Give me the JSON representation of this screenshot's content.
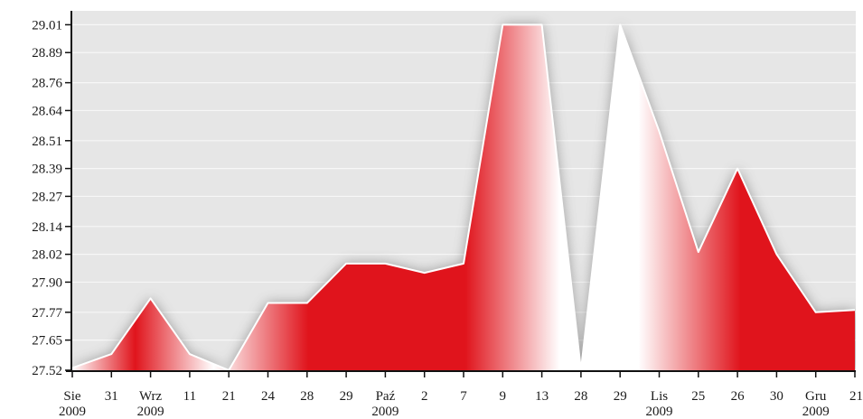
{
  "chart_data": {
    "type": "area",
    "title": "",
    "xlabel": "",
    "ylabel": "",
    "ylim": [
      27.52,
      29.07
    ],
    "grid": true,
    "y_ticks": [
      "29.01",
      "28.89",
      "28.76",
      "28.64",
      "28.51",
      "28.39",
      "28.27",
      "28.14",
      "28.02",
      "27.90",
      "27.77",
      "27.65",
      "27.52"
    ],
    "x_ticks": [
      {
        "label": "Sie",
        "year": "2009"
      },
      {
        "label": "31",
        "year": ""
      },
      {
        "label": "Wrz",
        "year": "2009"
      },
      {
        "label": "11",
        "year": ""
      },
      {
        "label": "21",
        "year": ""
      },
      {
        "label": "24",
        "year": ""
      },
      {
        "label": "28",
        "year": ""
      },
      {
        "label": "29",
        "year": ""
      },
      {
        "label": "Paź",
        "year": "2009"
      },
      {
        "label": "2",
        "year": ""
      },
      {
        "label": "7",
        "year": ""
      },
      {
        "label": "9",
        "year": ""
      },
      {
        "label": "13",
        "year": ""
      },
      {
        "label": "28",
        "year": ""
      },
      {
        "label": "29",
        "year": ""
      },
      {
        "label": "Lis",
        "year": "2009"
      },
      {
        "label": "25",
        "year": ""
      },
      {
        "label": "26",
        "year": ""
      },
      {
        "label": "30",
        "year": ""
      },
      {
        "label": "Gru",
        "year": "2009"
      },
      {
        "label": "21",
        "year": ""
      }
    ],
    "series": [
      {
        "values": [
          27.53,
          27.59,
          27.83,
          27.59,
          27.52,
          27.81,
          27.81,
          27.98,
          27.98,
          27.94,
          27.98,
          29.01,
          29.01,
          27.52,
          29.01,
          28.55,
          28.03,
          28.39,
          28.02,
          27.77,
          27.78
        ]
      }
    ],
    "colors": {
      "plot_bg": "#e6e6e6",
      "grid": "#f7f7f7",
      "fill_dark": "#e0141c",
      "fill_light": "#ffffff",
      "line": "#ffffff",
      "axis": "#111111"
    }
  }
}
